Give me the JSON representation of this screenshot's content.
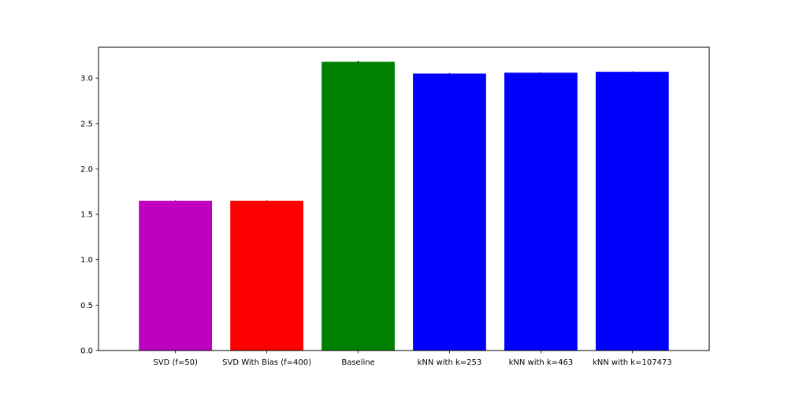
{
  "chart_data": {
    "type": "bar",
    "title": "",
    "xlabel": "",
    "ylabel": "",
    "categories": [
      "SVD (f=50)",
      "SVD With Bias (f=400)",
      "Baseline",
      "kNN with k=253",
      "kNN with k=463",
      "kNN with k=107473"
    ],
    "values": [
      1.65,
      1.65,
      3.18,
      3.05,
      3.06,
      3.07
    ],
    "errors": [
      0.003,
      0.003,
      0.01,
      0.006,
      0.004,
      0.004
    ],
    "colors": [
      "#bf00bf",
      "#ff0000",
      "#008000",
      "#0000ff",
      "#0000ff",
      "#0000ff"
    ],
    "ylim": [
      0,
      3.34
    ],
    "yticks": [
      0.0,
      0.5,
      1.0,
      1.5,
      2.0,
      2.5,
      3.0
    ],
    "ytick_labels": [
      "0.0",
      "0.5",
      "1.0",
      "1.5",
      "2.0",
      "2.5",
      "3.0"
    ],
    "grid": false,
    "legend": "none"
  }
}
